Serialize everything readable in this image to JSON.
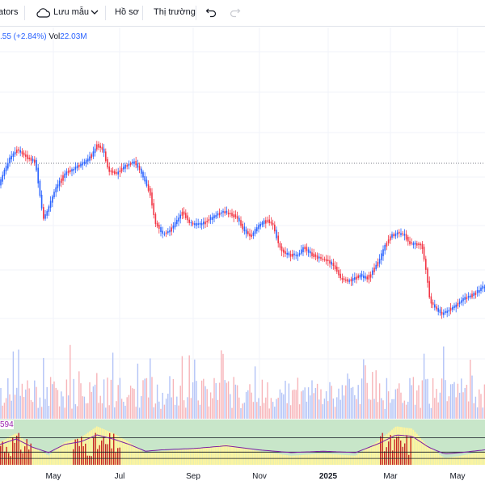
{
  "toolbar": {
    "indicators_label": "ators",
    "save_label": "Lưu mẫu",
    "profile_label": "Hồ sơ",
    "market_label": "Thị trường"
  },
  "legend": {
    "change": ".55 (+2.84%)",
    "volume_label": "Vol",
    "volume_value": "22.03M"
  },
  "oscillator": {
    "label": "594"
  },
  "colors": {
    "up": "#2962ff",
    "down": "#f23645",
    "vol_up": "#b2c3f7",
    "vol_down": "#f7b4b8",
    "osc_fill": "#fff59d",
    "osc_green": "#c8e6c9",
    "osc_line": "#7b1fa2"
  },
  "x_axis": [
    {
      "label": "May",
      "x": 66,
      "bold": false
    },
    {
      "label": "Jul",
      "x": 148,
      "bold": false
    },
    {
      "label": "Sep",
      "x": 239,
      "bold": false
    },
    {
      "label": "Nov",
      "x": 321,
      "bold": false
    },
    {
      "label": "2025",
      "x": 406,
      "bold": true
    },
    {
      "label": "Mar",
      "x": 483,
      "bold": false
    },
    {
      "label": "May",
      "x": 566,
      "bold": false
    }
  ]
}
